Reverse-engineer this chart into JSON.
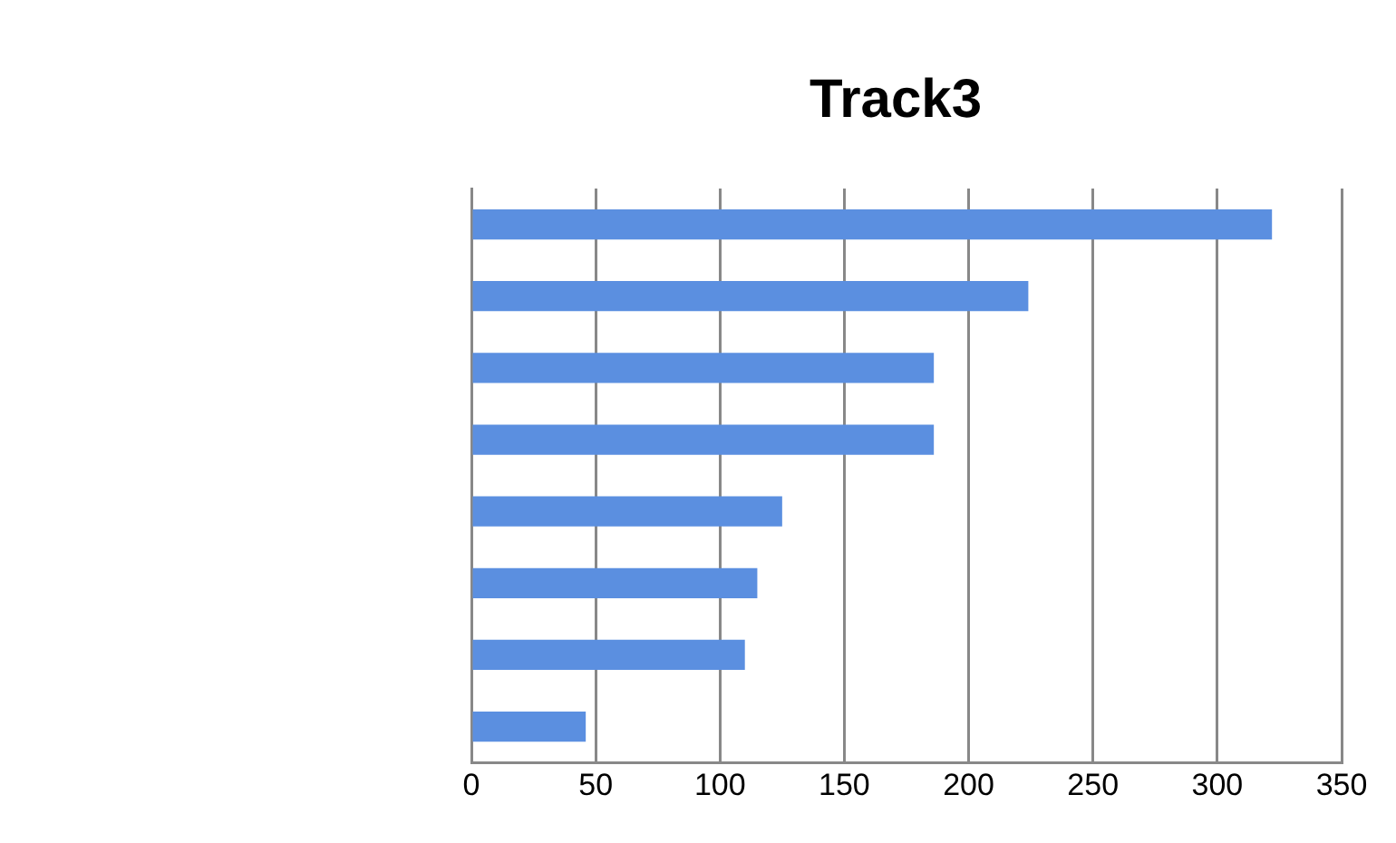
{
  "chart_data": {
    "type": "bar",
    "orientation": "horizontal",
    "title": "Track3",
    "categories": [
      null,
      null,
      null,
      null,
      null,
      null,
      null,
      null
    ],
    "values": [
      322,
      224,
      186,
      186,
      125,
      115,
      110,
      46
    ],
    "color": "#5b8fe0",
    "xlim": [
      0,
      350
    ],
    "xticks": [
      0,
      50,
      100,
      150,
      200,
      250,
      300,
      350
    ],
    "grid": "x",
    "legend": false
  }
}
